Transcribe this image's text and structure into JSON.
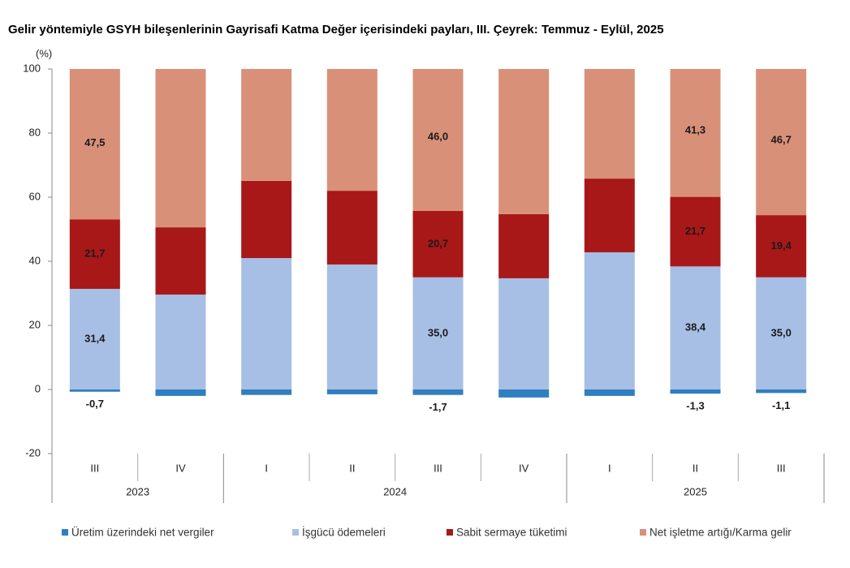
{
  "chart_data": {
    "type": "stacked_bar",
    "title": "Gelir yöntemiyle GSYH bileşenlerinin Gayrisafi Katma Değer içerisindeki payları, III. Çeyrek: Temmuz - Eylül, 2025",
    "ylabel": "(%)",
    "groups": [
      {
        "name": "2023",
        "categories": [
          "III",
          "IV"
        ]
      },
      {
        "name": "2024",
        "categories": [
          "I",
          "II",
          "III",
          "IV"
        ]
      },
      {
        "name": "2025",
        "categories": [
          "I",
          "II",
          "III"
        ]
      }
    ],
    "ylim": [
      -20,
      100
    ],
    "yticks": [
      -20,
      0,
      20,
      40,
      60,
      80,
      100
    ],
    "series": [
      {
        "name": "Üretim üzerindeki net vergiler",
        "color": "#2f7fc1",
        "values": [
          -0.7,
          -2.0,
          -1.7,
          -1.5,
          -1.7,
          -2.5,
          -2.0,
          -1.3,
          -1.1
        ],
        "value_labels": [
          "-0,7",
          null,
          null,
          null,
          "-1,7",
          null,
          null,
          "-1,3",
          "-1,1"
        ]
      },
      {
        "name": "İşgücü ödemeleri",
        "color": "#a7bfe4",
        "values": [
          31.4,
          29.6,
          41.0,
          39.0,
          35.0,
          34.7,
          42.8,
          38.4,
          35.0
        ],
        "value_labels": [
          "31,4",
          null,
          null,
          null,
          "35,0",
          null,
          null,
          "38,4",
          "35,0"
        ]
      },
      {
        "name": "Sabit sermaye tüketimi",
        "color": "#a81818",
        "values": [
          21.7,
          21.0,
          24.1,
          23.0,
          20.7,
          20.0,
          23.0,
          21.7,
          19.4
        ],
        "value_labels": [
          "21,7",
          null,
          null,
          null,
          "20,7",
          null,
          null,
          "21,7",
          "19,4"
        ]
      },
      {
        "name": "Net işletme artığı/Karma gelir",
        "color": "#d99079",
        "values": [
          47.5,
          51.4,
          36.6,
          39.5,
          46.0,
          47.8,
          36.2,
          41.3,
          46.7
        ],
        "value_labels": [
          "47,5",
          null,
          null,
          null,
          "46,0",
          null,
          null,
          "41,3",
          "46,7"
        ]
      }
    ]
  }
}
